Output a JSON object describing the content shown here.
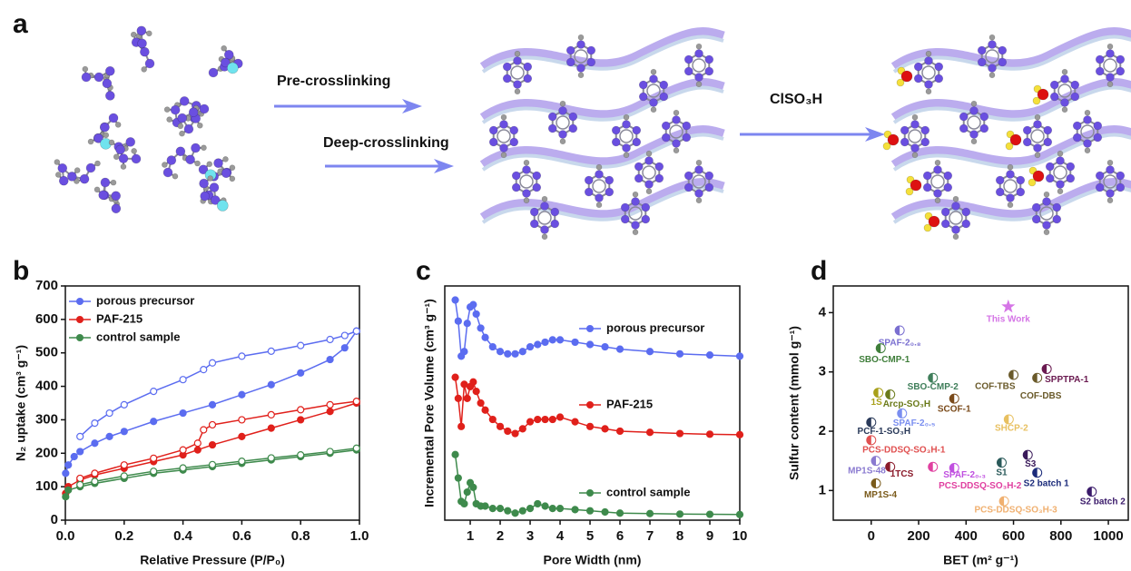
{
  "diagram": {
    "panel": "a",
    "steps": [
      "Pre-crosslinking",
      "Deep-crosslinking",
      "ClSO₃H"
    ]
  },
  "chart_data": [
    {
      "type": "line",
      "panel": "b",
      "xlabel": "Relative Pressure (P/P₀)",
      "ylabel": "N₂ uptake (cm³ g⁻¹)",
      "xlim": [
        0,
        1
      ],
      "ylim": [
        0,
        700
      ],
      "xticks": [
        {
          "value": 0,
          "label": "0.0"
        },
        0.2,
        0.4,
        0.6,
        0.8,
        {
          "value": 1,
          "label": "1.0"
        }
      ],
      "yticks": [
        0,
        100,
        200,
        300,
        400,
        500,
        600,
        700
      ],
      "legend": "upper left",
      "series": [
        {
          "name": "porous precursor",
          "color": "#5b6cf0",
          "marker": "filled",
          "x": [
            0.001,
            0.01,
            0.03,
            0.05,
            0.1,
            0.15,
            0.2,
            0.3,
            0.4,
            0.5,
            0.6,
            0.7,
            0.8,
            0.9,
            0.95,
            0.99
          ],
          "values": [
            140,
            165,
            190,
            205,
            230,
            250,
            265,
            295,
            320,
            345,
            375,
            405,
            440,
            480,
            515,
            565
          ]
        },
        {
          "color": "#5b6cf0",
          "marker": "open",
          "x": [
            0.99,
            0.95,
            0.9,
            0.8,
            0.7,
            0.6,
            0.5,
            0.47,
            0.4,
            0.3,
            0.2,
            0.15,
            0.1,
            0.05
          ],
          "values": [
            565,
            552,
            540,
            522,
            505,
            490,
            470,
            450,
            420,
            385,
            345,
            320,
            290,
            250
          ]
        },
        {
          "name": "PAF-215",
          "color": "#e0201b",
          "marker": "filled",
          "x": [
            0.001,
            0.01,
            0.05,
            0.1,
            0.2,
            0.3,
            0.4,
            0.45,
            0.5,
            0.6,
            0.7,
            0.8,
            0.9,
            0.99
          ],
          "values": [
            80,
            100,
            120,
            135,
            155,
            175,
            195,
            210,
            225,
            250,
            275,
            300,
            325,
            350
          ]
        },
        {
          "color": "#e0201b",
          "marker": "open",
          "x": [
            0.99,
            0.9,
            0.8,
            0.7,
            0.6,
            0.5,
            0.47,
            0.45,
            0.4,
            0.3,
            0.2,
            0.1,
            0.05
          ],
          "values": [
            355,
            345,
            330,
            315,
            300,
            285,
            270,
            230,
            210,
            185,
            165,
            140,
            125
          ]
        },
        {
          "name": "control sample",
          "color": "#3e8a4c",
          "marker": "filled",
          "x": [
            0.001,
            0.01,
            0.05,
            0.1,
            0.2,
            0.3,
            0.4,
            0.5,
            0.6,
            0.7,
            0.8,
            0.9,
            0.99
          ],
          "values": [
            70,
            90,
            100,
            110,
            125,
            140,
            150,
            160,
            170,
            180,
            190,
            200,
            210
          ]
        },
        {
          "color": "#3e8a4c",
          "marker": "open",
          "x": [
            0.99,
            0.9,
            0.8,
            0.7,
            0.6,
            0.5,
            0.4,
            0.3,
            0.2,
            0.1,
            0.05
          ],
          "values": [
            215,
            205,
            195,
            186,
            176,
            166,
            156,
            146,
            132,
            116,
            106
          ]
        }
      ]
    },
    {
      "type": "line",
      "panel": "c",
      "xlabel": "Pore Width (nm)",
      "ylabel": "Incremental Pore Volume (cm³ g⁻¹)",
      "xlim": [
        0.15,
        10
      ],
      "ylim": [
        0,
        100
      ],
      "xticks": [
        1,
        2,
        3,
        4,
        5,
        6,
        7,
        8,
        9,
        10
      ],
      "legend": "beside curves",
      "series": [
        {
          "name": "porous precursor",
          "color": "#5b6cf0",
          "marker": "filled",
          "x": [
            0.5,
            0.6,
            0.7,
            0.8,
            0.9,
            1.0,
            1.1,
            1.2,
            1.35,
            1.5,
            1.75,
            2.0,
            2.25,
            2.5,
            2.75,
            3.0,
            3.25,
            3.5,
            3.75,
            4.0,
            4.5,
            5.0,
            5.5,
            6.0,
            7.0,
            8.0,
            9.0,
            10.0
          ],
          "values": [
            94,
            85,
            70,
            72,
            84,
            91,
            92,
            88,
            82,
            78,
            74,
            72,
            71,
            71,
            72,
            74,
            75,
            76,
            77,
            77,
            76,
            75,
            74,
            73,
            72,
            71,
            70.5,
            70
          ]
        },
        {
          "name": "PAF-215",
          "color": "#e0201b",
          "marker": "filled",
          "x": [
            0.5,
            0.6,
            0.7,
            0.8,
            0.9,
            1.0,
            1.1,
            1.2,
            1.35,
            1.5,
            1.75,
            2.0,
            2.25,
            2.5,
            2.75,
            3.0,
            3.25,
            3.5,
            3.75,
            4.0,
            4.5,
            5.0,
            5.5,
            6.0,
            7.0,
            8.0,
            9.0,
            10.0
          ],
          "values": [
            61,
            52,
            40,
            58,
            52,
            57,
            59,
            55,
            50,
            47,
            43,
            40,
            38,
            37,
            39,
            42,
            43,
            43,
            43,
            44,
            42,
            40,
            39,
            38,
            37.5,
            37,
            36.7,
            36.5
          ]
        },
        {
          "name": "control sample",
          "color": "#3e8a4c",
          "marker": "filled",
          "x": [
            0.5,
            0.6,
            0.7,
            0.8,
            0.9,
            1.0,
            1.1,
            1.2,
            1.35,
            1.5,
            1.75,
            2.0,
            2.25,
            2.5,
            2.75,
            3.0,
            3.25,
            3.5,
            3.75,
            4.0,
            4.5,
            5.0,
            5.5,
            6.0,
            7.0,
            8.0,
            9.0,
            10.0
          ],
          "values": [
            28,
            18,
            8,
            7,
            12,
            16,
            14,
            7,
            6,
            6,
            5,
            5,
            4,
            3,
            4,
            5,
            7,
            6,
            5,
            5,
            4.5,
            4,
            3.5,
            3,
            2.8,
            2.6,
            2.5,
            2.4
          ]
        }
      ]
    },
    {
      "type": "scatter",
      "panel": "d",
      "xlabel": "BET (m² g⁻¹)",
      "ylabel": "Sulfur content  (mmol g⁻¹)",
      "xlim": [
        -160,
        1084
      ],
      "ylim": [
        0.5,
        4.45
      ],
      "xticks": [
        0,
        200,
        400,
        600,
        800,
        1000
      ],
      "yticks": [
        1,
        2,
        3,
        4
      ],
      "series": [
        {
          "name": "This Work",
          "color": "#d575e6",
          "marker": "star",
          "x": [
            578
          ],
          "values": [
            4.1
          ]
        },
        {
          "name": "SPAF-2₀.₈",
          "color": "#7a6fd0",
          "x": [
            120
          ],
          "values": [
            3.7
          ]
        },
        {
          "name": "SBO-CMP-1",
          "color": "#3f7e3a",
          "x": [
            40
          ],
          "values": [
            3.4
          ]
        },
        {
          "name": "SBO-CMP-2",
          "color": "#3f7e5a",
          "x": [
            260
          ],
          "values": [
            2.9
          ]
        },
        {
          "name": "SPPTPA-1",
          "color": "#6a1a50",
          "x": [
            740
          ],
          "values": [
            3.05
          ]
        },
        {
          "name": "COF-TBS",
          "color": "#6a5a2a",
          "x": [
            600
          ],
          "values": [
            2.95
          ]
        },
        {
          "name": "COF-DBS",
          "color": "#6a5a2a",
          "x": [
            700
          ],
          "values": [
            2.9
          ]
        },
        {
          "name": "1S",
          "color": "#a8a01a",
          "x": [
            30
          ],
          "values": [
            2.65
          ]
        },
        {
          "name": "Arcp-SO₃H",
          "color": "#6a7a1a",
          "x": [
            80
          ],
          "values": [
            2.62
          ]
        },
        {
          "name": "SCOF-1",
          "color": "#7a4a1a",
          "x": [
            350
          ],
          "values": [
            2.55
          ]
        },
        {
          "name": "SPAF-2₀.₅",
          "color": "#7a8ef0",
          "x": [
            130
          ],
          "values": [
            2.3
          ]
        },
        {
          "name": "SHCP-2",
          "color": "#e8c060",
          "x": [
            580
          ],
          "values": [
            2.2
          ]
        },
        {
          "name": "PCF-1-SO₃H",
          "color": "#2a3a5a",
          "x": [
            0
          ],
          "values": [
            2.15
          ]
        },
        {
          "name": "PCS-DDSQ-SO₃H-1",
          "color": "#e05050",
          "x": [
            0
          ],
          "values": [
            1.85
          ]
        },
        {
          "name": "S1",
          "color": "#2a5a5a",
          "x": [
            550
          ],
          "values": [
            1.47
          ]
        },
        {
          "name": "S3",
          "color": "#3a1a5a",
          "x": [
            660
          ],
          "values": [
            1.6
          ]
        },
        {
          "name": "MP1S-48",
          "color": "#8a7ad0",
          "x": [
            20
          ],
          "values": [
            1.5
          ]
        },
        {
          "name": "1TCS",
          "color": "#8a1a2a",
          "x": [
            80
          ],
          "values": [
            1.4
          ]
        },
        {
          "name": "SPAF-2₀.₃",
          "color": "#c050e0",
          "x": [
            350
          ],
          "values": [
            1.38
          ]
        },
        {
          "name": "PCS-DDSQ-SO₃H-2",
          "color": "#e040a0",
          "x": [
            260
          ],
          "values": [
            1.4
          ]
        },
        {
          "name": "S2 batch 1",
          "color": "#1a2a7a",
          "x": [
            700
          ],
          "values": [
            1.3
          ]
        },
        {
          "name": "MP1S-4",
          "color": "#7a5a1a",
          "x": [
            20
          ],
          "values": [
            1.12
          ]
        },
        {
          "name": "S2 batch 2",
          "color": "#3a1a6a",
          "x": [
            930
          ],
          "values": [
            0.98
          ]
        },
        {
          "name": "PCS-DDSQ-SO₃H-3",
          "color": "#f0b070",
          "x": [
            560
          ],
          "values": [
            0.82
          ]
        }
      ]
    }
  ]
}
